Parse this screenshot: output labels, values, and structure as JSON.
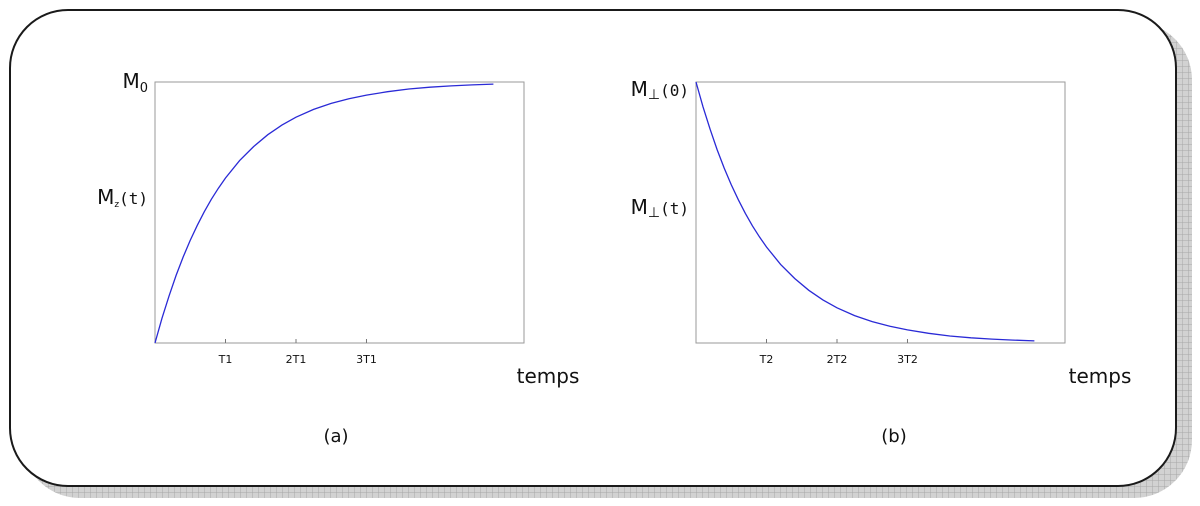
{
  "chart_data": [
    {
      "type": "line",
      "caption": "(a)",
      "xlabel": "temps",
      "y_top_label": {
        "main": "M",
        "sub": "0"
      },
      "y_mid_label": {
        "main": "M",
        "sub": "z",
        "mono": "(t)"
      },
      "x_ticks": [
        "T1",
        "2T1",
        "3T1"
      ],
      "x_tick_values": [
        1,
        2,
        3
      ],
      "xlim": [
        0,
        4.8
      ],
      "ylim": [
        0,
        1
      ],
      "y_mid_value": 0.6,
      "series": [
        {
          "color": "#2a2ad6",
          "points": [
            [
              0,
              0
            ],
            [
              0.1,
              0.095
            ],
            [
              0.2,
              0.181
            ],
            [
              0.3,
              0.259
            ],
            [
              0.4,
              0.33
            ],
            [
              0.5,
              0.393
            ],
            [
              0.6,
              0.451
            ],
            [
              0.7,
              0.503
            ],
            [
              0.8,
              0.551
            ],
            [
              0.9,
              0.593
            ],
            [
              1.0,
              0.632
            ],
            [
              1.2,
              0.699
            ],
            [
              1.4,
              0.753
            ],
            [
              1.6,
              0.798
            ],
            [
              1.8,
              0.835
            ],
            [
              2.0,
              0.865
            ],
            [
              2.25,
              0.895
            ],
            [
              2.5,
              0.918
            ],
            [
              2.75,
              0.936
            ],
            [
              3.0,
              0.95
            ],
            [
              3.3,
              0.963
            ],
            [
              3.6,
              0.973
            ],
            [
              3.9,
              0.98
            ],
            [
              4.2,
              0.985
            ],
            [
              4.5,
              0.989
            ],
            [
              4.8,
              0.992
            ]
          ]
        }
      ]
    },
    {
      "type": "line",
      "caption": "(b)",
      "xlabel": "temps",
      "y_top_label": {
        "main": "M",
        "sub": "⊥",
        "mono": "(0)"
      },
      "y_mid_label": {
        "main": "M",
        "sub": "⊥",
        "mono": "(t)"
      },
      "x_ticks": [
        "T2",
        "2T2",
        "3T2"
      ],
      "x_tick_values": [
        1,
        2,
        3
      ],
      "xlim": [
        0,
        4.8
      ],
      "ylim": [
        0,
        1
      ],
      "y_mid_value": 0.5,
      "series": [
        {
          "color": "#2a2ad6",
          "points": [
            [
              0,
              1
            ],
            [
              0.1,
              0.905
            ],
            [
              0.2,
              0.819
            ],
            [
              0.3,
              0.741
            ],
            [
              0.4,
              0.67
            ],
            [
              0.5,
              0.607
            ],
            [
              0.6,
              0.549
            ],
            [
              0.7,
              0.497
            ],
            [
              0.8,
              0.449
            ],
            [
              0.9,
              0.407
            ],
            [
              1.0,
              0.368
            ],
            [
              1.2,
              0.301
            ],
            [
              1.4,
              0.247
            ],
            [
              1.6,
              0.202
            ],
            [
              1.8,
              0.165
            ],
            [
              2.0,
              0.135
            ],
            [
              2.25,
              0.105
            ],
            [
              2.5,
              0.082
            ],
            [
              2.75,
              0.064
            ],
            [
              3.0,
              0.05
            ],
            [
              3.3,
              0.037
            ],
            [
              3.6,
              0.027
            ],
            [
              3.9,
              0.02
            ],
            [
              4.2,
              0.015
            ],
            [
              4.5,
              0.011
            ],
            [
              4.8,
              0.008
            ]
          ]
        }
      ]
    }
  ]
}
